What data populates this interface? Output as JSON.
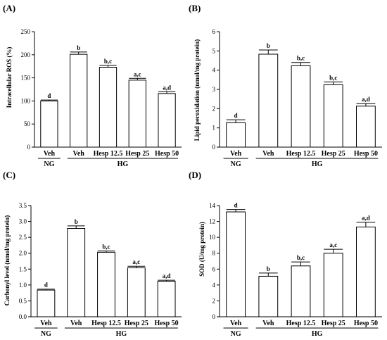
{
  "chart_data": [
    {
      "panel": "(A)",
      "type": "bar",
      "ylabel": "Intracellular ROS (%)",
      "ylim": [
        0,
        250
      ],
      "yticks": [
        0,
        50,
        100,
        150,
        200,
        250
      ],
      "categories": [
        "Veh",
        "Veh",
        "Hesp 12.5",
        "Hesp 25",
        "Hesp 50"
      ],
      "groups": [
        {
          "label": "NG",
          "count": 1
        },
        {
          "label": "HG",
          "count": 4
        }
      ],
      "values": [
        100,
        201,
        173,
        145,
        116
      ],
      "errors": [
        2,
        5,
        4,
        4,
        4
      ],
      "sig_labels": [
        "d",
        "b",
        "b,c",
        "a,c",
        "a,d"
      ]
    },
    {
      "panel": "(B)",
      "type": "bar",
      "ylabel": "Lipid peroxidation (nmol/mg protein)",
      "ylim": [
        0,
        6
      ],
      "yticks": [
        0,
        1,
        2,
        3,
        4,
        5,
        6
      ],
      "categories": [
        "Veh",
        "Veh",
        "Hesp 12.5",
        "Hesp 25",
        "Hesp 50"
      ],
      "groups": [
        {
          "label": "NG",
          "count": 1
        },
        {
          "label": "HG",
          "count": 4
        }
      ],
      "values": [
        1.27,
        4.83,
        4.23,
        3.24,
        2.13
      ],
      "errors": [
        0.15,
        0.22,
        0.17,
        0.15,
        0.13
      ],
      "sig_labels": [
        "d",
        "b",
        "b,c",
        "b,c",
        "a,d"
      ]
    },
    {
      "panel": "(C)",
      "type": "bar",
      "ylabel": "Carbonyl level (nmol/mg protein)",
      "ylim": [
        0,
        3.5
      ],
      "yticks": [
        "0.0",
        "0.5",
        "1.0",
        "1.5",
        "2.0",
        "2.5",
        "3.0",
        "3.5"
      ],
      "categories": [
        "Veh",
        "Veh",
        "Hesp 12.5",
        "Hesp 25",
        "Hesp 50"
      ],
      "groups": [
        {
          "label": "NG",
          "count": 1
        },
        {
          "label": "HG",
          "count": 4
        }
      ],
      "values": [
        0.84,
        2.78,
        2.03,
        1.54,
        1.12
      ],
      "errors": [
        0.03,
        0.08,
        0.04,
        0.05,
        0.03
      ],
      "sig_labels": [
        "d",
        "b",
        "b,c",
        "a,c",
        "a,d"
      ]
    },
    {
      "panel": "(D)",
      "type": "bar",
      "ylabel": "SOD (U/mg protein)",
      "ylim": [
        0,
        14
      ],
      "yticks": [
        0,
        2,
        4,
        6,
        8,
        10,
        12,
        14
      ],
      "categories": [
        "Veh",
        "Veh",
        "Hesp 12.5",
        "Hesp 25",
        "Hesp 50"
      ],
      "groups": [
        {
          "label": "NG",
          "count": 1
        },
        {
          "label": "HG",
          "count": 4
        }
      ],
      "values": [
        13.2,
        5.1,
        6.4,
        8.0,
        11.3
      ],
      "errors": [
        0.3,
        0.4,
        0.5,
        0.5,
        0.6
      ],
      "sig_labels": [
        "d",
        "b",
        "b,c",
        "a,c",
        "a,d"
      ]
    }
  ]
}
